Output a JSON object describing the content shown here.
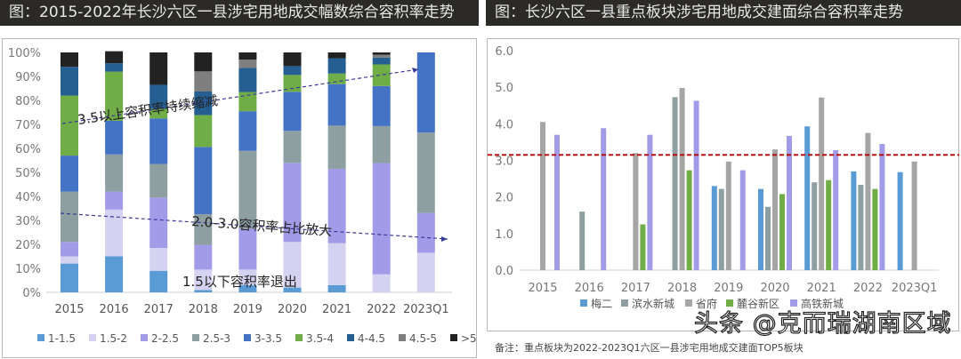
{
  "left": {
    "title": "图：2015-2022年长沙六区一县涉宅用地成交幅数综合容积率走势",
    "annotations": [
      "3.5以上容积率持续缩减",
      "2.0-3.0容积率占比放大",
      "1.5以下容积率退出"
    ]
  },
  "right": {
    "title": "图：长沙六区一县重点板块涉宅用地成交建面综合容积率走势",
    "note": "备注：重点板块为2022-2023Q1六区一县涉宅用地成交建面TOP5板块"
  },
  "watermark": "头条 @克而瑞湖南区域",
  "chart_data": [
    {
      "type": "bar",
      "stacked": true,
      "categories": [
        "2015",
        "2016",
        "2017",
        "2018",
        "2019",
        "2020",
        "2021",
        "2022",
        "2023Q1"
      ],
      "ylim": [
        0,
        100
      ],
      "yticks": [
        "0%",
        "10%",
        "20%",
        "30%",
        "40%",
        "50%",
        "60%",
        "70%",
        "80%",
        "90%",
        "100%"
      ],
      "legend": "bottom",
      "series": [
        {
          "name": "1-1.5",
          "color": "#5b9bd5",
          "values": [
            12,
            15,
            9,
            1,
            3,
            2,
            3,
            0,
            0
          ]
        },
        {
          "name": "1.5-2",
          "color": "#d4d2f0",
          "values": [
            3,
            19.5,
            9.5,
            8.5,
            6.5,
            19,
            17.5,
            7.5,
            16.5
          ]
        },
        {
          "name": "2-2.5",
          "color": "#a29be8",
          "values": [
            6,
            7.5,
            21,
            10.3,
            17,
            33,
            31,
            46.4,
            16.6
          ]
        },
        {
          "name": "2.5-3",
          "color": "#8d9fa1",
          "values": [
            21,
            15.5,
            14,
            12.8,
            32.5,
            13.3,
            18,
            15.4,
            33.5
          ]
        },
        {
          "name": "3-3.5",
          "color": "#4472c4",
          "values": [
            15,
            14,
            19,
            28,
            16.5,
            16.3,
            17.3,
            16.7,
            33.4
          ]
        },
        {
          "name": "3.5-4",
          "color": "#70ad47",
          "values": [
            25,
            20.5,
            4,
            13.3,
            8,
            7,
            4.4,
            9,
            0
          ]
        },
        {
          "name": "4-4.5",
          "color": "#255e91",
          "values": [
            12,
            3.5,
            10,
            9.8,
            10,
            3.7,
            6.4,
            2.8,
            0
          ]
        },
        {
          "name": "4.5-5",
          "color": "#7f7f7f",
          "values": [
            0,
            0,
            0,
            8.4,
            3.5,
            0,
            0,
            1.2,
            0
          ]
        },
        {
          "name": ">5",
          "color": "#222222",
          "values": [
            6,
            5,
            13.5,
            7.9,
            3,
            5.7,
            2.4,
            1,
            0
          ]
        }
      ]
    },
    {
      "type": "bar",
      "categories": [
        "2015",
        "2016",
        "2017",
        "2018",
        "2019",
        "2020",
        "2021",
        "2022",
        "2023Q1"
      ],
      "ylim": [
        0,
        6
      ],
      "yticks": [
        "0.0",
        "1.0",
        "2.0",
        "3.0",
        "4.0",
        "5.0",
        "6.0"
      ],
      "legend": "bottom",
      "reference_line": {
        "value": 3.15,
        "color": "#c00000",
        "style": "dashed"
      },
      "series": [
        {
          "name": "梅二",
          "color": "#5b9bd5",
          "values": [
            null,
            null,
            null,
            null,
            2.3,
            2.22,
            3.93,
            2.7,
            2.68
          ]
        },
        {
          "name": "滨水新城",
          "color": "#8d9fa1",
          "values": [
            null,
            1.6,
            null,
            4.73,
            2.22,
            1.73,
            2.4,
            2.33,
            null
          ]
        },
        {
          "name": "省府",
          "color": "#a5a5a5",
          "values": [
            4.05,
            null,
            3.2,
            4.98,
            2.97,
            3.3,
            4.72,
            3.75,
            2.97
          ]
        },
        {
          "name": "麓谷新区",
          "color": "#70ad47",
          "values": [
            null,
            null,
            1.25,
            2.73,
            null,
            2.08,
            2.46,
            2.22,
            null
          ]
        },
        {
          "name": "高铁新城",
          "color": "#a29be8",
          "values": [
            3.7,
            3.88,
            3.7,
            4.63,
            2.73,
            3.67,
            3.28,
            3.45,
            null
          ]
        }
      ]
    }
  ]
}
